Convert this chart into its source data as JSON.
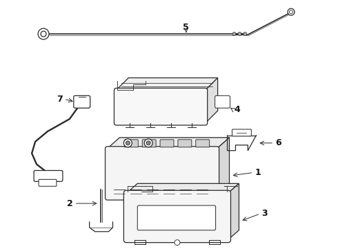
{
  "background_color": "#ffffff",
  "line_color": "#2a2a2a",
  "label_color": "#111111",
  "fig_width": 4.9,
  "fig_height": 3.6,
  "dpi": 100,
  "lw": 0.9
}
